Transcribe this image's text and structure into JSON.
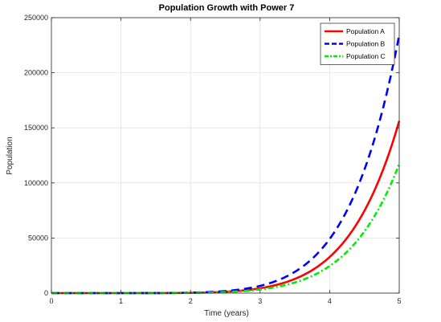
{
  "chart_data": {
    "type": "line",
    "title": "Population Growth with Power 7",
    "xlabel": "Time (years)",
    "ylabel": "Population",
    "xlim": [
      0,
      5
    ],
    "ylim": [
      0,
      250000
    ],
    "xticks": [
      0,
      1,
      2,
      3,
      4,
      5
    ],
    "yticks": [
      0,
      50000,
      100000,
      150000,
      200000,
      250000
    ],
    "xtick_labels": [
      "0",
      "1",
      "2",
      "3",
      "4",
      "5"
    ],
    "ytick_labels": [
      "0",
      "50000",
      "100000",
      "150000",
      "200000",
      "250000"
    ],
    "grid": true,
    "legend_position": "top-right",
    "curve_form": "y = a * t^7",
    "x": [
      0,
      0.5,
      1,
      1.5,
      2,
      2.5,
      3,
      3.5,
      4,
      4.5,
      5
    ],
    "series": [
      {
        "name": "Population A",
        "color": "#ff0000",
        "style": "solid",
        "coefficient": 2,
        "values": [
          0,
          0.016,
          2,
          34,
          256,
          1221,
          4374,
          12868,
          32768,
          74733,
          156250
        ]
      },
      {
        "name": "Population B",
        "color": "#0000ff",
        "style": "dashed",
        "coefficient": 3,
        "values": [
          0,
          0.023,
          3,
          51,
          384,
          1831,
          6561,
          19302,
          49152,
          112100,
          234375
        ]
      },
      {
        "name": "Population C",
        "color": "#00ee00",
        "style": "dash-dot",
        "coefficient": 1.5,
        "values": [
          0,
          0.012,
          1.5,
          26,
          192,
          916,
          3281,
          9651,
          24576,
          56050,
          117188
        ]
      }
    ]
  }
}
